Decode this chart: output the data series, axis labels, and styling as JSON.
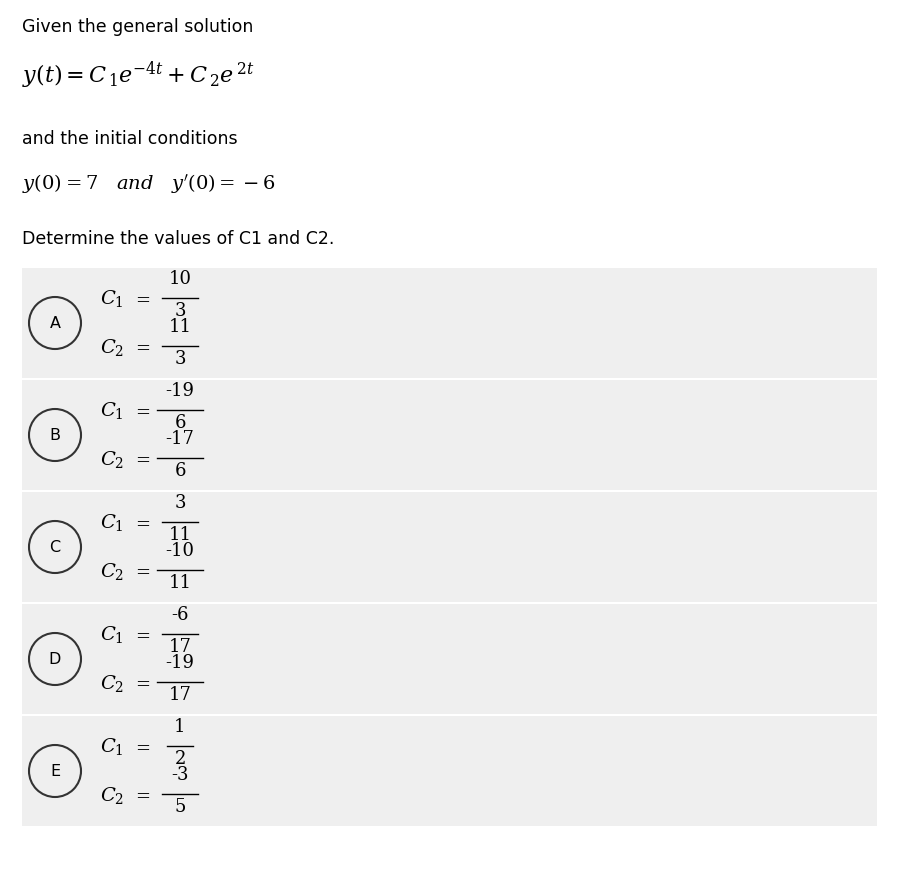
{
  "bg_color": "#ffffff",
  "answer_bg_color": "#efefef",
  "options": [
    {
      "label": "A",
      "c1_num": "10",
      "c1_den": "3",
      "c2_num": "11",
      "c2_den": "3"
    },
    {
      "label": "B",
      "c1_num": "-19",
      "c1_den": "6",
      "c2_num": "-17",
      "c2_den": "6"
    },
    {
      "label": "C",
      "c1_num": "3",
      "c1_den": "11",
      "c2_num": "-10",
      "c2_den": "11"
    },
    {
      "label": "D",
      "c1_num": "-6",
      "c1_den": "17",
      "c2_num": "-19",
      "c2_den": "17"
    },
    {
      "label": "E",
      "c1_num": "1",
      "c1_den": "2",
      "c2_num": "-3",
      "c2_den": "5"
    }
  ]
}
